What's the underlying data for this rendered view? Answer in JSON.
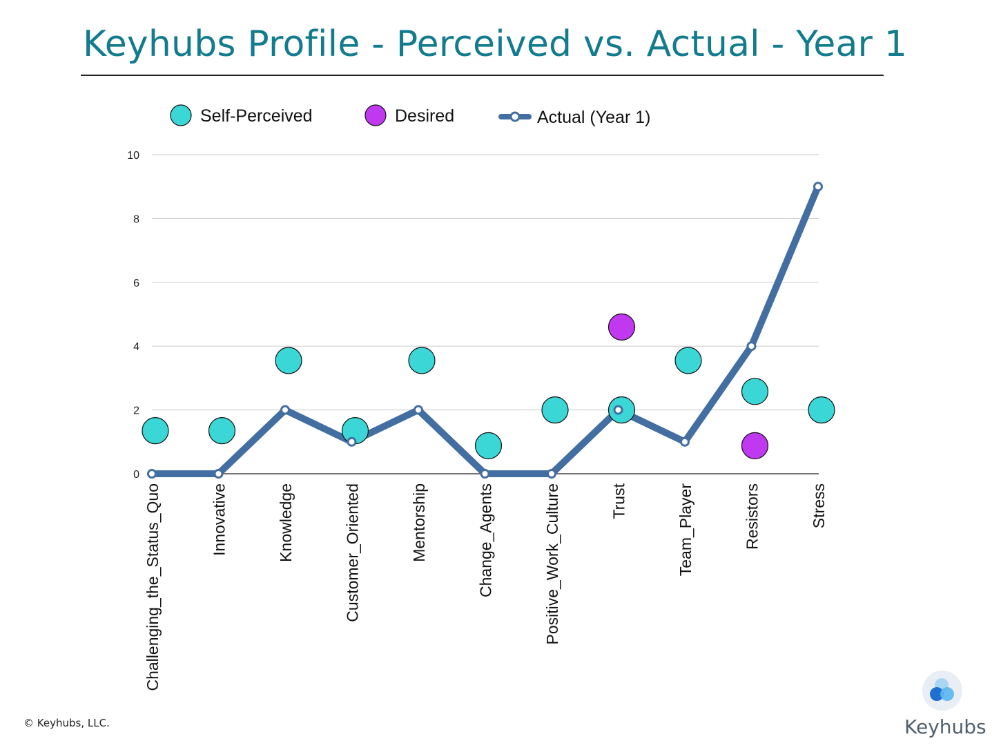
{
  "page": {
    "title": "Keyhubs Profile - Perceived vs. Actual - Year 1",
    "copyright": "© Keyhubs, LLC.",
    "brand_name": "Keyhubs",
    "brand_logo_icon": "overlapping-circles-logo-icon"
  },
  "colors": {
    "title": "#137b8e",
    "self_perceived": "#3bd6d6",
    "desired": "#c038f0",
    "actual_line": "#436ea1",
    "grid": "#c8c8c8"
  },
  "chart_data": {
    "type": "line",
    "title": "",
    "xlabel": "",
    "ylabel": "",
    "ylim": [
      0,
      10
    ],
    "yticks": [
      0,
      2,
      4,
      6,
      8,
      10
    ],
    "grid": true,
    "legend_position": "top",
    "categories": [
      "Challenging_the_Status_Quo",
      "Innovative",
      "Knowledge",
      "Customer_Oriented",
      "Mentorship",
      "Change_Agents",
      "Positive_Work_Culture",
      "Trust",
      "Team_Player",
      "Resistors",
      "Stress"
    ],
    "series": [
      {
        "name": "Self-Perceived",
        "kind": "scatter",
        "color": "#3bd6d6",
        "values": [
          1.35,
          1.35,
          3.55,
          1.35,
          3.55,
          0.88,
          2.0,
          2.0,
          3.55,
          2.58,
          2.0
        ]
      },
      {
        "name": "Desired",
        "kind": "scatter",
        "color": "#c038f0",
        "values": [
          null,
          null,
          null,
          null,
          null,
          null,
          null,
          4.6,
          null,
          0.88,
          null
        ]
      },
      {
        "name": "Actual (Year 1)",
        "kind": "line",
        "color": "#436ea1",
        "values": [
          0,
          0,
          2,
          1,
          2,
          0,
          0,
          2,
          1,
          4,
          9
        ]
      }
    ]
  }
}
